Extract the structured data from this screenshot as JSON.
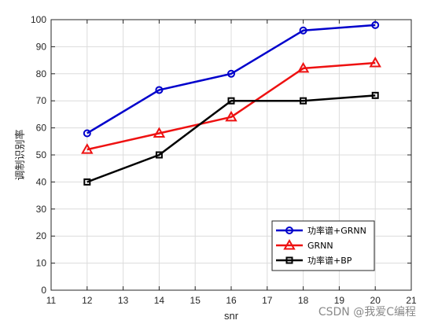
{
  "chart_data": {
    "type": "line",
    "xlabel": "snr",
    "ylabel": "调制识别率",
    "xlim": [
      11,
      21
    ],
    "ylim": [
      0,
      100
    ],
    "xticks": [
      11,
      12,
      13,
      14,
      15,
      16,
      17,
      18,
      19,
      20,
      21
    ],
    "yticks": [
      0,
      10,
      20,
      30,
      40,
      50,
      60,
      70,
      80,
      90,
      100
    ],
    "grid": true,
    "legend_position": "bottom-right",
    "x": [
      12,
      14,
      16,
      18,
      20
    ],
    "series": [
      {
        "name": "功率谱+GRNN",
        "values": [
          58,
          74,
          80,
          96,
          98
        ],
        "color": "#0000cc",
        "marker": "circle"
      },
      {
        "name": "GRNN",
        "values": [
          52,
          58,
          64,
          82,
          84
        ],
        "color": "#ee1111",
        "marker": "triangle"
      },
      {
        "name": "功率谱+BP",
        "values": [
          40,
          50,
          70,
          70,
          72
        ],
        "color": "#000000",
        "marker": "square"
      }
    ]
  },
  "watermark": "CSDN @我爱C编程"
}
